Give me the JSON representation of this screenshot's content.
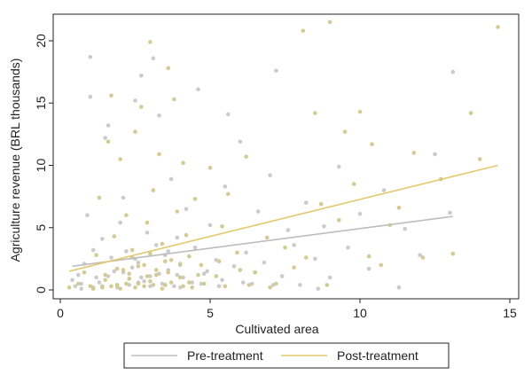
{
  "chart_data": {
    "type": "scatter",
    "xlabel": "Cultivated area",
    "ylabel": "Agriculture revenue (BRL thousands)",
    "xlim": [
      0,
      15
    ],
    "ylim": [
      0,
      22
    ],
    "x_ticks": [
      0,
      5,
      10,
      15
    ],
    "y_ticks": [
      0,
      5,
      10,
      15,
      20
    ],
    "x_tick_labels": [
      "0",
      "5",
      "10",
      "15"
    ],
    "y_tick_labels": [
      "0",
      "5",
      "10",
      "15",
      "20"
    ],
    "grid": "none",
    "legend_position": "bottom",
    "series": [
      {
        "name": "Pre-treatment",
        "color": "#c8c8c8",
        "points": [
          [
            0.4,
            0.8
          ],
          [
            0.5,
            0.3
          ],
          [
            0.6,
            1.2
          ],
          [
            0.7,
            0.5
          ],
          [
            0.8,
            2.1
          ],
          [
            0.9,
            6.0
          ],
          [
            1.0,
            18.7
          ],
          [
            1.0,
            15.5
          ],
          [
            1.1,
            3.2
          ],
          [
            1.2,
            1.0
          ],
          [
            1.3,
            0.6
          ],
          [
            1.4,
            4.1
          ],
          [
            1.5,
            12.2
          ],
          [
            1.6,
            13.2
          ],
          [
            1.7,
            2.6
          ],
          [
            1.8,
            1.5
          ],
          [
            1.9,
            0.4
          ],
          [
            2.0,
            5.4
          ],
          [
            2.1,
            7.4
          ],
          [
            2.2,
            3.1
          ],
          [
            2.3,
            0.9
          ],
          [
            2.4,
            1.8
          ],
          [
            2.5,
            15.2
          ],
          [
            2.6,
            2.2
          ],
          [
            2.7,
            17.2
          ],
          [
            2.8,
            0.7
          ],
          [
            2.9,
            4.6
          ],
          [
            3.0,
            1.1
          ],
          [
            3.1,
            18.6
          ],
          [
            3.2,
            3.6
          ],
          [
            3.3,
            14.0
          ],
          [
            3.4,
            0.5
          ],
          [
            3.5,
            2.8
          ],
          [
            3.6,
            1.6
          ],
          [
            3.7,
            8.9
          ],
          [
            3.8,
            0.3
          ],
          [
            3.9,
            4.2
          ],
          [
            4.0,
            2.0
          ],
          [
            4.1,
            1.0
          ],
          [
            4.2,
            6.5
          ],
          [
            4.4,
            0.6
          ],
          [
            4.5,
            3.4
          ],
          [
            4.6,
            16.1
          ],
          [
            4.8,
            1.3
          ],
          [
            5.0,
            5.2
          ],
          [
            5.2,
            2.4
          ],
          [
            5.4,
            0.8
          ],
          [
            5.5,
            8.3
          ],
          [
            5.6,
            14.1
          ],
          [
            5.8,
            1.9
          ],
          [
            6.0,
            11.9
          ],
          [
            6.2,
            3.0
          ],
          [
            6.4,
            0.5
          ],
          [
            6.6,
            6.3
          ],
          [
            6.8,
            2.2
          ],
          [
            7.0,
            9.2
          ],
          [
            7.2,
            17.6
          ],
          [
            7.4,
            1.1
          ],
          [
            7.6,
            4.8
          ],
          [
            7.8,
            3.6
          ],
          [
            8.0,
            0.4
          ],
          [
            8.2,
            7.0
          ],
          [
            8.5,
            2.5
          ],
          [
            8.8,
            5.1
          ],
          [
            9.0,
            1.0
          ],
          [
            9.3,
            9.9
          ],
          [
            9.6,
            3.4
          ],
          [
            10.0,
            6.1
          ],
          [
            10.3,
            1.7
          ],
          [
            10.8,
            8.0
          ],
          [
            11.3,
            0.2
          ],
          [
            11.5,
            4.9
          ],
          [
            12.0,
            2.8
          ],
          [
            12.5,
            10.9
          ],
          [
            13.0,
            6.2
          ],
          [
            13.1,
            17.5
          ],
          [
            0.7,
            0.1
          ],
          [
            1.1,
            0.2
          ],
          [
            1.4,
            0.3
          ],
          [
            1.9,
            0.2
          ],
          [
            2.3,
            0.4
          ],
          [
            2.6,
            0.6
          ],
          [
            3.0,
            0.3
          ],
          [
            3.5,
            0.4
          ],
          [
            4.0,
            0.2
          ],
          [
            4.7,
            0.5
          ],
          [
            5.3,
            0.3
          ],
          [
            6.1,
            0.6
          ],
          [
            7.1,
            0.4
          ],
          [
            8.6,
            0.1
          ],
          [
            1.6,
            1.1
          ],
          [
            2.1,
            1.4
          ],
          [
            2.7,
            1.0
          ],
          [
            3.3,
            1.3
          ],
          [
            3.9,
            1.2
          ],
          [
            4.9,
            1.5
          ],
          [
            6.5,
            1.4
          ],
          [
            2.5,
            2.5
          ],
          [
            3.6,
            3.1
          ]
        ]
      },
      {
        "name": "Post-treatment",
        "color": "#d3c88a",
        "points": [
          [
            0.3,
            0.2
          ],
          [
            0.6,
            0.5
          ],
          [
            0.8,
            1.4
          ],
          [
            1.0,
            0.3
          ],
          [
            1.2,
            2.8
          ],
          [
            1.3,
            7.4
          ],
          [
            1.5,
            0.8
          ],
          [
            1.6,
            11.9
          ],
          [
            1.7,
            15.6
          ],
          [
            1.8,
            4.3
          ],
          [
            1.9,
            0.4
          ],
          [
            2.0,
            10.5
          ],
          [
            2.1,
            1.6
          ],
          [
            2.2,
            6.0
          ],
          [
            2.3,
            0.9
          ],
          [
            2.4,
            3.2
          ],
          [
            2.5,
            12.7
          ],
          [
            2.6,
            0.5
          ],
          [
            2.7,
            14.7
          ],
          [
            2.8,
            2.0
          ],
          [
            2.9,
            5.4
          ],
          [
            3.0,
            19.9
          ],
          [
            3.0,
            0.7
          ],
          [
            3.1,
            8.0
          ],
          [
            3.2,
            1.2
          ],
          [
            3.3,
            10.9
          ],
          [
            3.4,
            3.7
          ],
          [
            3.5,
            0.4
          ],
          [
            3.6,
            17.8
          ],
          [
            3.7,
            2.4
          ],
          [
            3.8,
            15.3
          ],
          [
            3.9,
            6.3
          ],
          [
            4.0,
            1.0
          ],
          [
            4.1,
            10.2
          ],
          [
            4.2,
            4.4
          ],
          [
            4.3,
            0.6
          ],
          [
            4.5,
            7.3
          ],
          [
            4.7,
            2.0
          ],
          [
            5.0,
            9.8
          ],
          [
            5.2,
            1.1
          ],
          [
            5.4,
            5.1
          ],
          [
            5.6,
            7.7
          ],
          [
            5.9,
            3.0
          ],
          [
            6.2,
            10.7
          ],
          [
            6.5,
            1.4
          ],
          [
            6.9,
            4.2
          ],
          [
            7.2,
            0.5
          ],
          [
            7.5,
            3.4
          ],
          [
            7.8,
            1.8
          ],
          [
            8.1,
            20.8
          ],
          [
            8.2,
            2.6
          ],
          [
            8.5,
            14.2
          ],
          [
            8.7,
            6.9
          ],
          [
            8.9,
            0.4
          ],
          [
            9.0,
            21.5
          ],
          [
            9.3,
            5.6
          ],
          [
            9.5,
            12.7
          ],
          [
            9.8,
            8.5
          ],
          [
            10.0,
            14.3
          ],
          [
            10.3,
            2.7
          ],
          [
            10.4,
            11.7
          ],
          [
            10.7,
            2.0
          ],
          [
            11.0,
            5.2
          ],
          [
            11.3,
            6.6
          ],
          [
            11.8,
            11.0
          ],
          [
            12.1,
            2.6
          ],
          [
            12.7,
            8.9
          ],
          [
            13.1,
            2.9
          ],
          [
            13.7,
            14.2
          ],
          [
            14.0,
            10.5
          ],
          [
            14.6,
            21.1
          ],
          [
            1.1,
            0.1
          ],
          [
            1.4,
            0.2
          ],
          [
            1.7,
            0.3
          ],
          [
            2.0,
            0.1
          ],
          [
            2.2,
            0.5
          ],
          [
            2.5,
            0.2
          ],
          [
            2.8,
            0.3
          ],
          [
            3.1,
            0.4
          ],
          [
            3.4,
            0.1
          ],
          [
            3.7,
            0.6
          ],
          [
            4.1,
            0.3
          ],
          [
            4.4,
            0.2
          ],
          [
            4.8,
            0.5
          ],
          [
            5.5,
            0.3
          ],
          [
            6.3,
            0.4
          ],
          [
            7.0,
            0.2
          ],
          [
            1.5,
            1.2
          ],
          [
            1.9,
            1.7
          ],
          [
            2.3,
            1.3
          ],
          [
            2.6,
            1.9
          ],
          [
            2.9,
            1.1
          ],
          [
            3.2,
            1.6
          ],
          [
            3.6,
            1.4
          ],
          [
            4.0,
            2.1
          ],
          [
            4.6,
            1.2
          ],
          [
            5.3,
            2.3
          ],
          [
            6.0,
            1.6
          ],
          [
            2.4,
            2.6
          ],
          [
            3.0,
            2.9
          ],
          [
            3.5,
            2.3
          ],
          [
            4.3,
            2.7
          ]
        ]
      }
    ],
    "fit_lines": [
      {
        "series": "Pre-treatment",
        "x": [
          0.4,
          13.1
        ],
        "y": [
          1.9,
          5.9
        ]
      },
      {
        "series": "Post-treatment",
        "x": [
          0.3,
          14.6
        ],
        "y": [
          1.5,
          10.0
        ]
      }
    ]
  }
}
